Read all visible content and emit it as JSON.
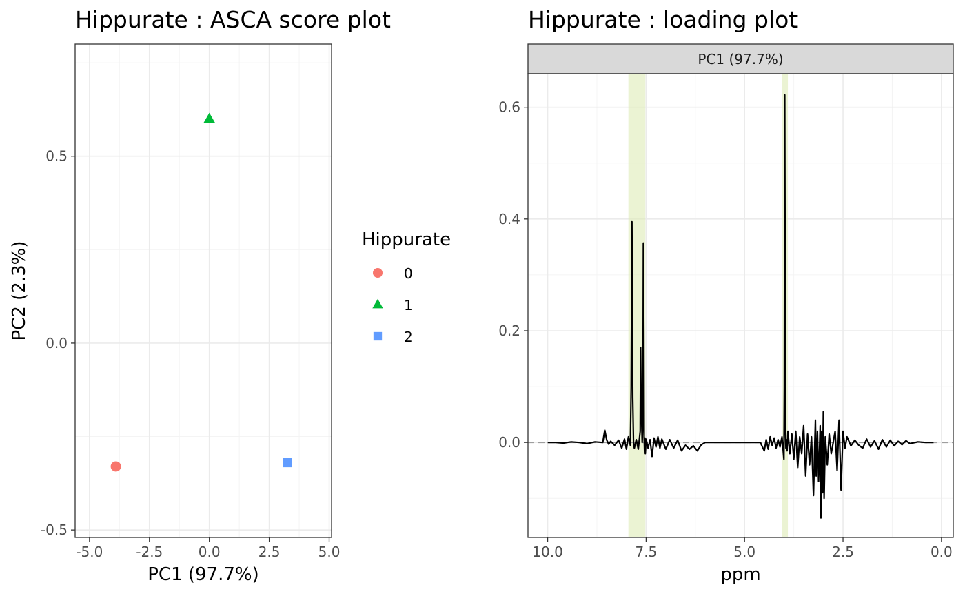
{
  "chart_data": [
    {
      "type": "scatter",
      "title": "Hippurate : ASCA score plot",
      "xlabel": "PC1 (97.7%)",
      "ylabel": "PC2 (2.3%)",
      "xlim": [
        -5.6,
        5.1
      ],
      "ylim": [
        -0.52,
        0.8
      ],
      "x_ticks": [
        -5.0,
        -2.5,
        0.0,
        2.5,
        5.0
      ],
      "x_tick_labels": [
        "-5.0",
        "-2.5",
        "0.0",
        "2.5",
        "5.0"
      ],
      "y_ticks": [
        -0.5,
        0.0,
        0.5
      ],
      "y_tick_labels": [
        "-0.5",
        "0.0",
        "0.5"
      ],
      "grid": true,
      "legend": {
        "title": "Hippurate",
        "position": "right",
        "entries": [
          {
            "label": "0",
            "color": "#F8766D",
            "shape": "circle"
          },
          {
            "label": "1",
            "color": "#00BA38",
            "shape": "triangle"
          },
          {
            "label": "2",
            "color": "#619CFF",
            "shape": "square"
          }
        ]
      },
      "points": [
        {
          "group": "0",
          "x": -3.9,
          "y": -0.33
        },
        {
          "group": "1",
          "x": 0.0,
          "y": 0.6
        },
        {
          "group": "2",
          "x": 3.25,
          "y": -0.32
        }
      ]
    },
    {
      "type": "line",
      "title": "Hippurate : loading plot",
      "strip": "PC1 (97.7%)",
      "xlabel": "ppm",
      "ylabel": "",
      "x_reversed": true,
      "xlim": [
        10.5,
        -0.3
      ],
      "ylim": [
        -0.17,
        0.66
      ],
      "x_ticks": [
        10.0,
        7.5,
        5.0,
        2.5,
        0.0
      ],
      "x_tick_labels": [
        "10.0",
        "7.5",
        "5.0",
        "2.5",
        "0.0"
      ],
      "y_ticks": [
        0.0,
        0.2,
        0.4,
        0.6
      ],
      "y_tick_labels": [
        "0.0",
        "0.2",
        "0.4",
        "0.6"
      ],
      "grid": true,
      "baseline": 0.0,
      "highlight_color": "#DDEBB5",
      "highlight_bands": [
        [
          7.52,
          7.95
        ],
        [
          3.9,
          4.05
        ]
      ],
      "line_color": "#000000",
      "series": [
        {
          "ppm": [
            10.0,
            9.8,
            9.6,
            9.4,
            9.2,
            9.0,
            8.8,
            8.6,
            8.55,
            8.5,
            8.45,
            8.4,
            8.3,
            8.2,
            8.12,
            8.05,
            8.0,
            7.95,
            7.9,
            7.88,
            7.86,
            7.84,
            7.82,
            7.8,
            7.75,
            7.7,
            7.65,
            7.64,
            7.63,
            7.61,
            7.6,
            7.58,
            7.57,
            7.56,
            7.55,
            7.54,
            7.53,
            7.52,
            7.5,
            7.45,
            7.4,
            7.35,
            7.3,
            7.25,
            7.2,
            7.15,
            7.1,
            7.0,
            6.9,
            6.8,
            6.7,
            6.6,
            6.5,
            6.4,
            6.3,
            6.2,
            6.1,
            6.0,
            5.8,
            5.5,
            5.2,
            5.0,
            4.8,
            4.6,
            4.5,
            4.45,
            4.4,
            4.35,
            4.3,
            4.25,
            4.2,
            4.15,
            4.1,
            4.05,
            4.0,
            3.99,
            3.98,
            3.97,
            3.96,
            3.95,
            3.94,
            3.92,
            3.9,
            3.85,
            3.8,
            3.75,
            3.7,
            3.65,
            3.6,
            3.55,
            3.5,
            3.45,
            3.4,
            3.35,
            3.3,
            3.25,
            3.22,
            3.2,
            3.18,
            3.15,
            3.12,
            3.1,
            3.08,
            3.06,
            3.04,
            3.02,
            3.0,
            2.98,
            2.95,
            2.9,
            2.85,
            2.8,
            2.75,
            2.7,
            2.65,
            2.6,
            2.55,
            2.5,
            2.45,
            2.4,
            2.3,
            2.2,
            2.1,
            2.0,
            1.9,
            1.8,
            1.7,
            1.6,
            1.5,
            1.4,
            1.3,
            1.2,
            1.1,
            1.0,
            0.9,
            0.8,
            0.6,
            0.4,
            0.2
          ],
          "loading": [
            0.0,
            0.0,
            -0.001,
            0.001,
            0.0,
            -0.002,
            0.001,
            0.0,
            0.022,
            0.004,
            -0.003,
            0.002,
            -0.005,
            0.004,
            -0.01,
            0.006,
            -0.012,
            0.01,
            -0.005,
            0.1,
            0.395,
            0.08,
            0.0,
            -0.01,
            0.005,
            -0.012,
            0.02,
            0.17,
            0.09,
            0.03,
            0.0,
            0.04,
            0.357,
            0.2,
            0.01,
            -0.015,
            0.008,
            -0.02,
            0.006,
            -0.01,
            0.005,
            -0.025,
            0.008,
            -0.008,
            0.01,
            -0.01,
            0.006,
            -0.012,
            0.005,
            -0.01,
            0.004,
            -0.015,
            -0.005,
            -0.012,
            -0.006,
            -0.015,
            -0.004,
            0.0,
            0.0,
            0.0,
            0.0,
            0.0,
            0.0,
            0.0,
            -0.015,
            0.005,
            -0.012,
            0.01,
            -0.005,
            0.008,
            -0.01,
            0.005,
            -0.008,
            0.01,
            -0.03,
            0.1,
            0.622,
            0.3,
            0.02,
            -0.01,
            0.005,
            -0.015,
            0.02,
            -0.02,
            0.015,
            -0.03,
            0.02,
            -0.045,
            0.01,
            -0.02,
            0.03,
            -0.06,
            0.015,
            -0.04,
            0.01,
            -0.095,
            -0.01,
            0.04,
            -0.06,
            0.02,
            -0.07,
            -0.02,
            0.03,
            -0.135,
            0.02,
            -0.09,
            0.055,
            -0.1,
            0.01,
            -0.04,
            0.015,
            -0.02,
            0.0,
            0.02,
            -0.05,
            0.04,
            -0.085,
            0.02,
            -0.01,
            0.01,
            -0.006,
            0.004,
            -0.005,
            -0.01,
            0.006,
            -0.008,
            0.003,
            -0.012,
            0.005,
            -0.008,
            0.004,
            -0.006,
            0.002,
            -0.004,
            0.003,
            -0.002,
            0.001,
            0.0,
            0.0
          ]
        }
      ]
    }
  ]
}
